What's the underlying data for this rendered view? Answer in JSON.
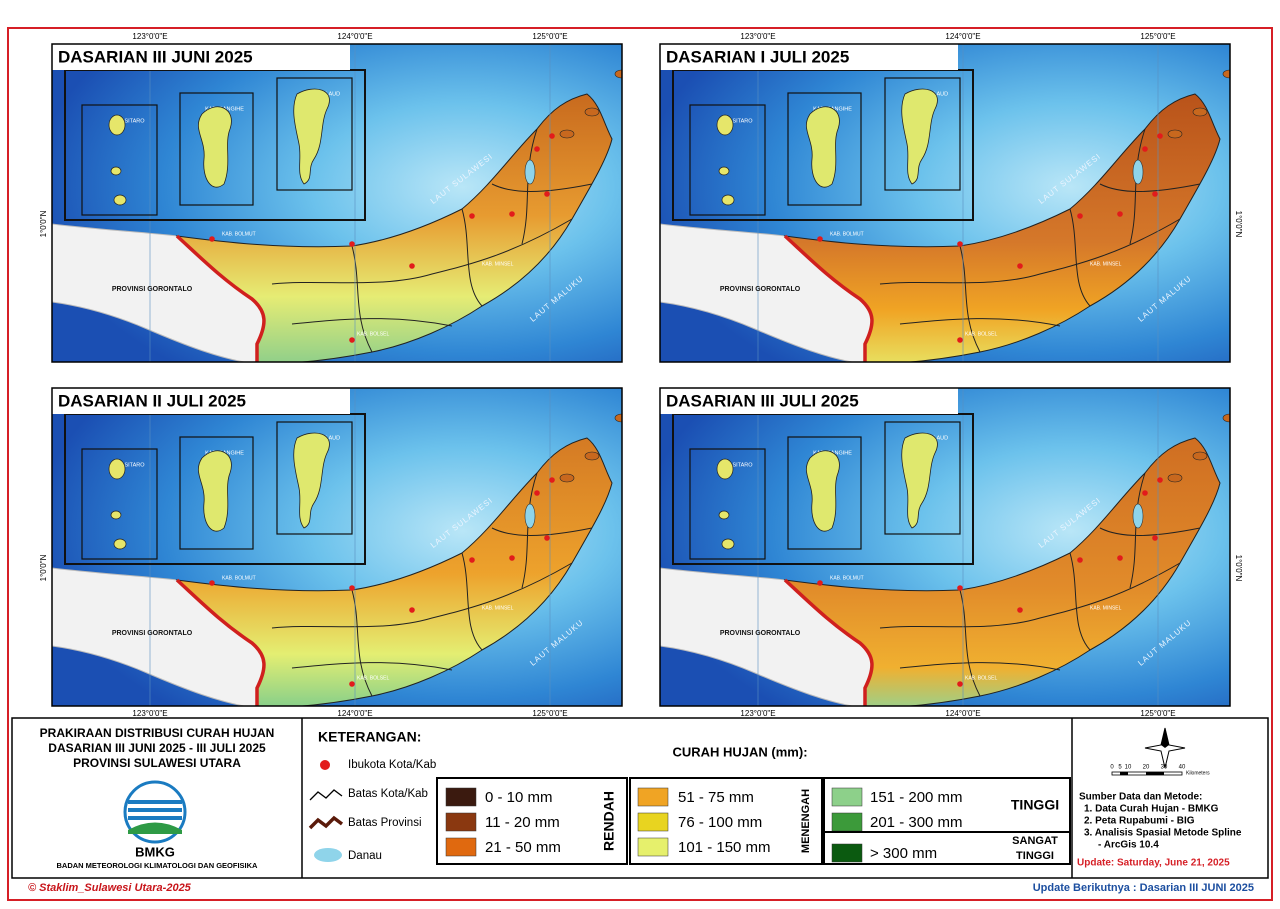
{
  "maps": [
    {
      "title": "DASARIAN III JUNI 2025"
    },
    {
      "title": "DASARIAN I JULI 2025"
    },
    {
      "title": "DASARIAN II JULI 2025"
    },
    {
      "title": "DASARIAN III JULI 2025"
    }
  ],
  "map_labels": {
    "longitudes": [
      "123°0'0\"E",
      "124°0'0\"E",
      "125°0'0\"E"
    ],
    "latitude": "1°0'0\"N",
    "province": "PROVINSI GORONTALO",
    "sea_west": "LAUT SULAWESI",
    "sea_east": "LAUT MALUKU",
    "places": [
      "KAB. SITARO",
      "KAB. SANGIHE",
      "KAB. TALAUD",
      "KAB. BOLMUT",
      "KAB. BOLSEL",
      "KAB. MINSEL"
    ]
  },
  "header": {
    "lines": [
      "PRAKIRAAN DISTRIBUSI CURAH HUJAN",
      "DASARIAN III JUNI 2025 - III JULI 2025",
      "PROVINSI SULAWESI UTARA"
    ],
    "logo_text": "BMKG",
    "organization": "BADAN METEOROLOGI KLIMATOLOGI DAN GEOFISIKA"
  },
  "legend": {
    "heading": "KETERANGAN:",
    "symbols": [
      "Ibukota Kota/Kab",
      "Batas Kota/Kab",
      "Batas Provinsi",
      "Danau"
    ],
    "rain_heading": "CURAH HUJAN (mm):",
    "groups": [
      {
        "name": "RENDAH",
        "classes": [
          {
            "label": "0 - 10 mm",
            "color": "#3b1a0f"
          },
          {
            "label": "11 - 20 mm",
            "color": "#8a3810"
          },
          {
            "label": "21 - 50 mm",
            "color": "#e0690f"
          }
        ]
      },
      {
        "name": "MENENGAH",
        "classes": [
          {
            "label": "51 - 75 mm",
            "color": "#f0a424"
          },
          {
            "label": "76 - 100 mm",
            "color": "#e8d420"
          },
          {
            "label": "101 - 150 mm",
            "color": "#e6f06c"
          }
        ]
      },
      {
        "name": "TINGGI",
        "classes": [
          {
            "label": "151 - 200 mm",
            "color": "#8dd08a"
          },
          {
            "label": "201 - 300 mm",
            "color": "#3c9a3a"
          }
        ]
      },
      {
        "name_lines": [
          "SANGAT",
          "TINGGI"
        ],
        "classes": [
          {
            "label": "> 300 mm",
            "color": "#0b5a10"
          }
        ]
      }
    ]
  },
  "scale": {
    "ticks": [
      "0",
      "5",
      "10",
      "20",
      "30",
      "40"
    ],
    "unit": "Kilometers"
  },
  "sources": {
    "heading": "Sumber Data dan Metode:",
    "items": [
      "1. Data Curah Hujan - BMKG",
      "2. Peta Rupabumi - BIG",
      "3. Analisis Spasial Metode Spline",
      "- ArcGis 10.4"
    ],
    "update": "Update: Saturday, June 21, 2025"
  },
  "footer": {
    "copyright": "© Staklim_Sulawesi Utara-2025",
    "next_update": "Update Berikutnya : Dasarian III JUNI 2025"
  }
}
